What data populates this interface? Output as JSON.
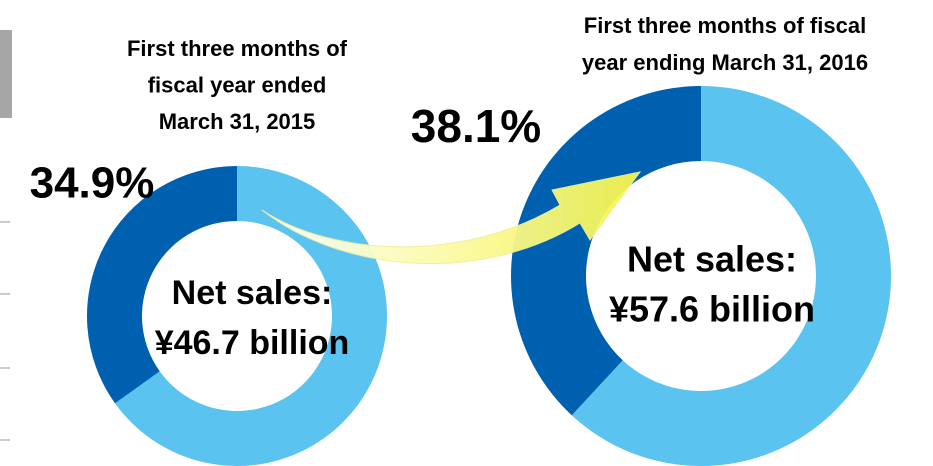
{
  "chart_data": [
    {
      "type": "pie",
      "donut": true,
      "title": [
        "First three months of",
        "fiscal year ended",
        "March 31, 2015"
      ],
      "values": [
        34.9,
        65.1
      ],
      "value_labels": [
        "34.9%",
        null
      ],
      "colors": [
        "#0060b0",
        "#5bc3f0"
      ],
      "annotation": [
        "Net sales:",
        "¥46.7 billion"
      ]
    },
    {
      "type": "pie",
      "donut": true,
      "title": [
        "First three months of fiscal",
        "year ending March 31, 2016"
      ],
      "values": [
        38.1,
        61.9
      ],
      "value_labels": [
        "38.1%",
        null
      ],
      "colors": [
        "#0060b0",
        "#5bc3f0"
      ],
      "annotation": [
        "Net sales:",
        "¥57.6 billion"
      ]
    }
  ]
}
